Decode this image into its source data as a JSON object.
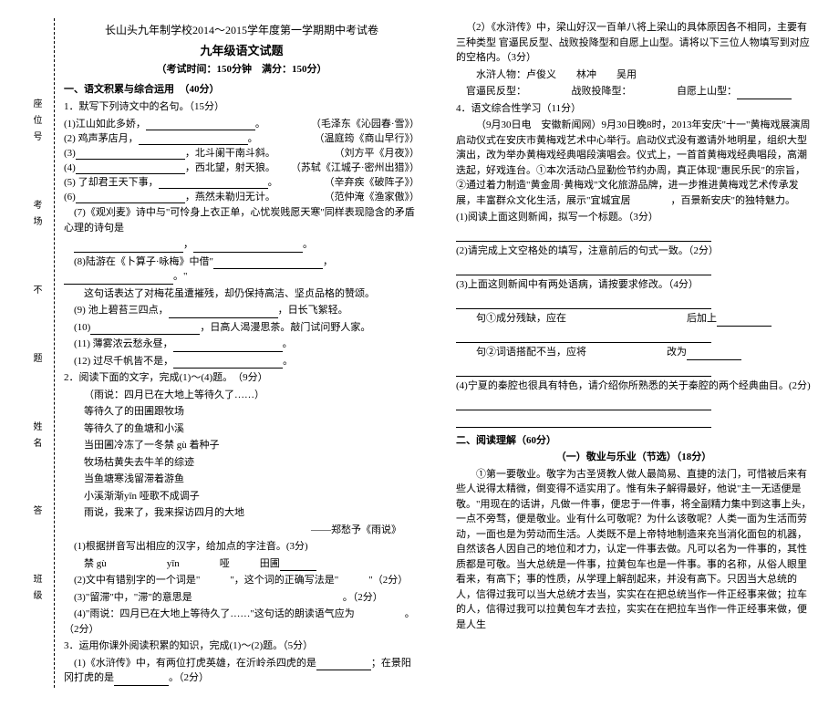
{
  "header": {
    "school": "长山头九年制学校2014～2015学年度第一学期期中考试卷",
    "grade": "九年级语文试题",
    "exam_info": "（考试时间：150分钟　满分：150分）"
  },
  "margin_labels": [
    "座位号",
    "考场",
    "不",
    "题",
    "姓名",
    "答",
    "班级"
  ],
  "section1": {
    "title": "一、语文积累与综合运用　（40分）",
    "q1": {
      "title": "1．默写下列诗文中的名句。（15分）",
      "items": [
        {
          "left": "(1)江山如此多娇，",
          "right": "（毛泽东《沁园春·雪》）",
          "blank_after": "。"
        },
        {
          "left": "(2) 鸡声茅店月，",
          "right": "（温庭筠《商山早行》）",
          "blank_after": "。"
        },
        {
          "left": "(3)",
          "blank_before": true,
          "mid": "，北斗阑干南斗斜。",
          "right": "（刘方平《月夜》）"
        },
        {
          "left": "(4)",
          "blank_before": true,
          "mid": "，西北望，射天狼。",
          "right": "（苏轼《江城子·密州出猎》）"
        },
        {
          "left": "(5) 了却君王天下事，",
          "right": "（辛弃疾《破阵子》）",
          "blank_after": "。"
        },
        {
          "left": "(6)",
          "blank_before": true,
          "mid": "，燕然未勒归无计。",
          "right": "（范仲淹《渔家傲》）"
        },
        {
          "q7": "(7)《观刈麦》诗中与\"可怜身上衣正单，心忧炭贱愿天寒\"同样表现隐含的矛盾心理的诗句是"
        },
        {
          "q8_a": "(8)陆游在《卜算子·咏梅》中借\"",
          "q8_b": "，",
          "q8_c": "。\""
        },
        {
          "q8_d": "这句话表达了对梅花虽遭摧残，却仍保持高洁、坚贞品格的赞颂。"
        },
        {
          "left": "(9) 池上碧苔三四点，",
          "mid": "，日长飞絮轻。"
        },
        {
          "left_a": "(10)",
          "mid_a": "，日高人渴漫思茶。敲门试问野人家。"
        },
        {
          "left_b": "(11) 薄雾浓云愁永昼，",
          "blank_after_b": "。"
        },
        {
          "left_c": "(12) 过尽千帆皆不是，",
          "blank_after_c": "。"
        }
      ]
    },
    "q2": {
      "title": "2．阅读下面的文字，完成(1)～(4)题。　（9分）",
      "poem": [
        "（雨说：四月已在大地上等待久了……）",
        "等待久了的田圃跟牧场",
        "等待久了的鱼塘和小溪",
        "当田圃冷冻了一冬禁 gù 着种子",
        "牧场枯黄失去牛羊的综迹",
        "当鱼塘寒浅留滞着游鱼",
        "小溪渐渐yīn 哑歌不成调子",
        "雨说，我来了，我来探访四月的大地"
      ],
      "poem_source": "——郑愁予《雨说》",
      "sub1": "(1)根据拼音写出相应的汉字，给加点的字注音。(3分)",
      "sub1_line": "禁 gù　　　　　　yīn　　　　哑　　　田圃",
      "sub2": "(2)文中有错别字的一个词是\"　　　\"，这个词的正确写法是\"　　　\"（2分）",
      "sub3": "(3)\"留滞\"中，\"滞\"的意思是　　　　　　　　　　　　　　　。（2分）",
      "sub4": "(4)\"雨说：四月已在大地上等待久了……\"这句话的朗读语气应为　　　　　。（2分）"
    },
    "q3": {
      "title": "3．运用你课外阅读积累的知识，完成(1)～(2)题。（5分）",
      "sub1a": "(1)《水浒传》中，有两位打虎英雄，在沂岭杀四虎的是",
      "sub1b": "；在景阳冈打虎的是",
      "sub1c": "。（2分）"
    }
  },
  "page2": {
    "q3_sub2": {
      "text": "（2）《水浒传》中，梁山好汉一百单八将上梁山的具体原因各不相同，主要有三种类型 官逼民反型、战败投降型和自愿上山型。请将以下三位人物填写到对应的空格内。（3分）",
      "people": "水浒人物：卢俊义　　林冲　　吴用",
      "blanks": "官逼民反型：　　　　　战败投降型：　　　　　自愿上山型："
    },
    "q4": {
      "title": "4．语文综合性学习（11分）",
      "news": "（9月30日电　安徽新闻网）9月30日晚8时，2013年安庆\"十一\"黄梅戏展演周启动仪式在安庆市黄梅戏艺术中心举行。启动仪式没有邀请外地明星，组织大型演出，改为举办黄梅戏经典唱段演唱会。仪式上，一首首黄梅戏经典唱段，高潮迭起，好戏连台。①本次活动凸显勤俭节约办周，真正体现\"惠民乐民\"的宗旨，②通过着力制造\"黄金周·黄梅戏\"文化旅游品牌，进一步推进黄梅戏艺术传承发展，丰富群众文化生活，展示\"宜城宜居　　　　，百景新安庆\"的独特魅力。",
      "sub1": "(1)阅读上面这则新闻，拟写一个标题。（3分）",
      "sub2": "(2)请完成上文空格处的填写，注意前后的句式一致。（2分）",
      "sub3": "(3)上面这则新闻中有两处语病，请按要求修改。（4分）",
      "sub3a": "句①成分残缺，应在　　　　　　　　　　　　后加上",
      "sub3b": "句②词语搭配不当，应将　　　　　　　　改为",
      "sub4": "(4)宁夏的秦腔也很具有特色，请介绍你所熟悉的关于秦腔的两个经典曲目。(2分)"
    },
    "section2": {
      "title": "二、阅读理解（60分）",
      "article_title": "（一）敬业与乐业（节选）（18分）",
      "para1": "①第一要敬业。敬字为古圣贤教人做人最简易、直捷的法门，可惜被后来有些人说得太精微，倒变得不适实用了。惟有朱子解得最好，他说\"主一无适便是敬。\"用现在的话讲，凡做一件事，便忠于一件事，将全副精力集中到这事上头，一点不旁骛，便是敬业。业有什么可敬呢？为什么该敬呢？人类一面为生活而劳动，一面也是为劳动而生活。人类既不是上帝特地制造来充当消化面包的机器，自然该各人因自己的地位和才力，认定一件事去做。凡可以名为一件事的，其性质都是可敬。当大总统是一件事，拉黄包车也是一件事。事的名称，从俗人眼里看来，有高下；事的性质，从学理上解剖起来，并没有高下。只因当大总统的人，信得过我可以当大总统才去当，实实在在把总统当作一件正经事来做；拉车的人，信得过我可以拉黄包车才去拉，实实在在把拉车当作一件正经事来做，便是人生"
    }
  }
}
